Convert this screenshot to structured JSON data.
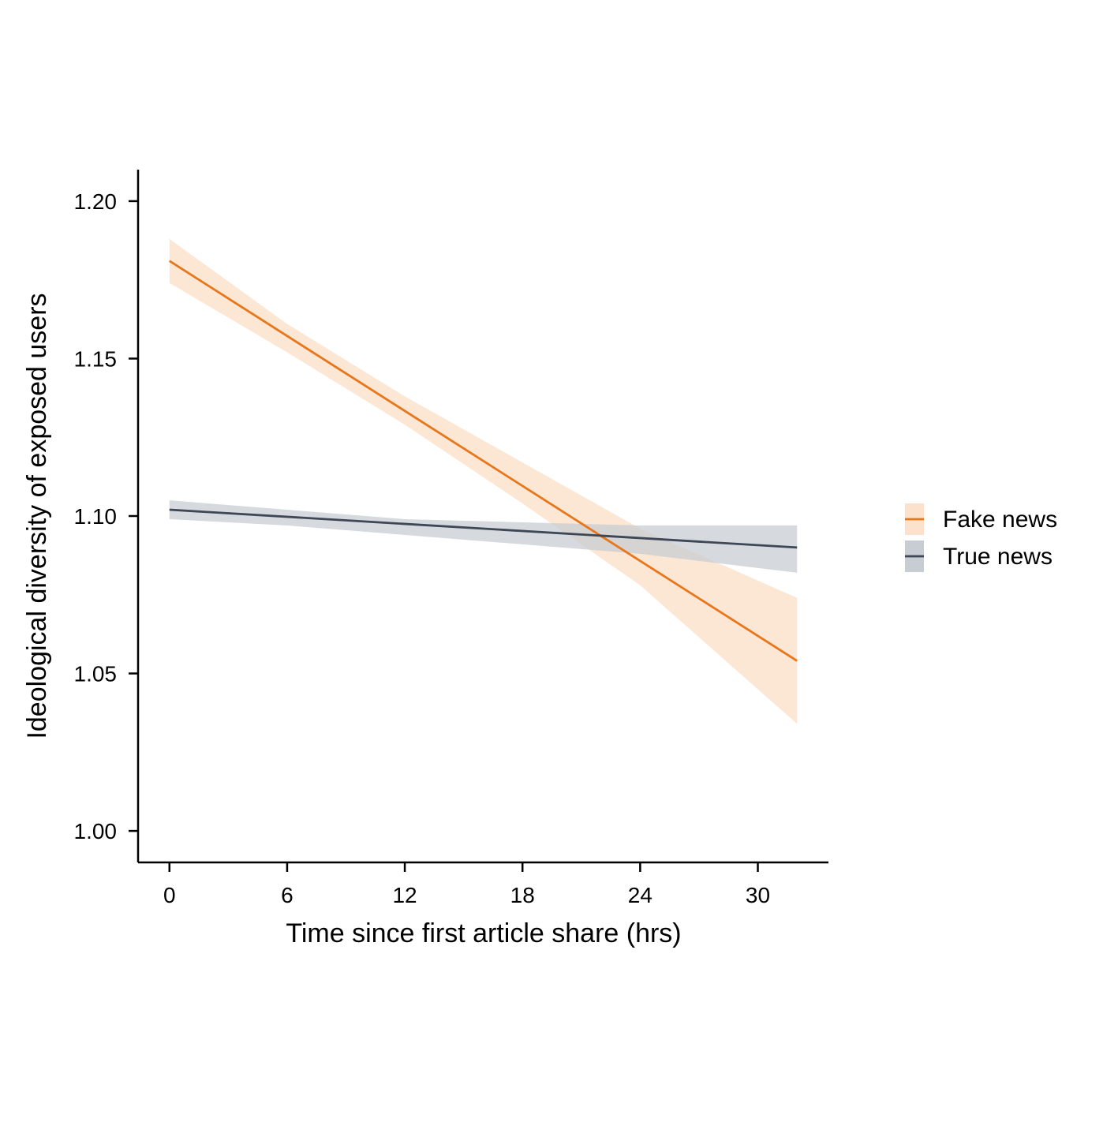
{
  "chart_data": {
    "type": "line",
    "xlabel": "Time since first article share (hrs)",
    "ylabel": "Ideological diversity of exposed users",
    "xlim": [
      -1.6,
      33.6
    ],
    "ylim": [
      0.99,
      1.21
    ],
    "xticks": [
      0,
      6,
      12,
      18,
      24,
      30
    ],
    "yticks": [
      1.0,
      1.05,
      1.1,
      1.15,
      1.2
    ],
    "xtick_labels": [
      "0",
      "6",
      "12",
      "18",
      "24",
      "30"
    ],
    "ytick_labels": [
      "1.00",
      "1.05",
      "1.10",
      "1.15",
      "1.20"
    ],
    "grid": false,
    "legend_position": "right",
    "series": [
      {
        "name": "Fake news",
        "color": "#E8761A",
        "band_color": "#FCE2CC",
        "x": [
          0,
          32
        ],
        "y": [
          1.181,
          1.054
        ],
        "ci_x": [
          0,
          6,
          12,
          18,
          24,
          32
        ],
        "ci_lower": [
          1.174,
          1.152,
          1.129,
          1.104,
          1.078,
          1.034
        ],
        "ci_upper": [
          1.188,
          1.161,
          1.138,
          1.117,
          1.096,
          1.074
        ]
      },
      {
        "name": "True news",
        "color": "#3E4756",
        "band_color": "#C8CDD3",
        "x": [
          0,
          32
        ],
        "y": [
          1.102,
          1.09
        ],
        "ci_x": [
          0,
          6,
          12,
          18,
          24,
          32
        ],
        "ci_lower": [
          1.099,
          1.097,
          1.094,
          1.091,
          1.088,
          1.082
        ],
        "ci_upper": [
          1.105,
          1.102,
          1.099,
          1.098,
          1.097,
          1.097
        ]
      }
    ]
  }
}
